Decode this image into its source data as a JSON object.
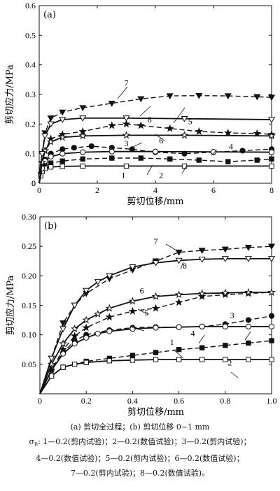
{
  "chart_data": [
    {
      "type": "line",
      "panel_label": "(a)",
      "xlabel": "剪切位移/mm",
      "ylabel": "剪切应力/MPa",
      "xlim": [
        0,
        8
      ],
      "ylim": [
        0,
        0.6
      ],
      "xticks": [
        0,
        2,
        4,
        6,
        8
      ],
      "yticks": [
        "0",
        "0.1",
        "0.2",
        "0.3",
        "0.4",
        "0.5",
        "0.6"
      ],
      "grid": false,
      "series": [
        {
          "name": "1",
          "marker": "square-filled",
          "dashed": true,
          "x": [
            0,
            0.05,
            0.1,
            0.2,
            0.4,
            0.8,
            1.5,
            2.5,
            3.5,
            4.5,
            5.5,
            6.5,
            7.5,
            8
          ],
          "y": [
            0,
            0.03,
            0.045,
            0.06,
            0.068,
            0.075,
            0.082,
            0.085,
            0.085,
            0.082,
            0.078,
            0.073,
            0.078,
            0.082
          ]
        },
        {
          "name": "2",
          "marker": "square-open",
          "dashed": false,
          "x": [
            0,
            0.05,
            0.1,
            0.2,
            0.4,
            0.8,
            1.5,
            3,
            5,
            8
          ],
          "y": [
            0,
            0.025,
            0.04,
            0.05,
            0.055,
            0.057,
            0.058,
            0.058,
            0.058,
            0.058
          ]
        },
        {
          "name": "3",
          "marker": "circle-filled",
          "dashed": true,
          "x": [
            0,
            0.1,
            0.2,
            0.4,
            0.8,
            1.2,
            1.8,
            2.5,
            3.2,
            4,
            5,
            6,
            7,
            8
          ],
          "y": [
            0,
            0.05,
            0.08,
            0.1,
            0.115,
            0.12,
            0.125,
            0.12,
            0.115,
            0.105,
            0.1,
            0.105,
            0.11,
            0.115
          ]
        },
        {
          "name": "4",
          "marker": "circle-open",
          "dashed": false,
          "x": [
            0,
            0.1,
            0.2,
            0.4,
            0.8,
            1.5,
            2.5,
            4,
            6,
            8
          ],
          "y": [
            0,
            0.05,
            0.075,
            0.09,
            0.1,
            0.105,
            0.107,
            0.107,
            0.106,
            0.105
          ]
        },
        {
          "name": "5",
          "marker": "star-filled",
          "dashed": true,
          "x": [
            0,
            0.1,
            0.2,
            0.4,
            0.8,
            1.5,
            2.5,
            3,
            3.5,
            4.5,
            5.5,
            6.5,
            7.5,
            8
          ],
          "y": [
            0,
            0.07,
            0.11,
            0.15,
            0.165,
            0.175,
            0.195,
            0.2,
            0.195,
            0.185,
            0.175,
            0.17,
            0.168,
            0.165
          ]
        },
        {
          "name": "6",
          "marker": "star-open",
          "dashed": false,
          "x": [
            0,
            0.1,
            0.2,
            0.4,
            0.8,
            1.5,
            3,
            5,
            8
          ],
          "y": [
            0,
            0.07,
            0.11,
            0.14,
            0.155,
            0.16,
            0.162,
            0.162,
            0.16
          ]
        },
        {
          "name": "7",
          "marker": "triangle-down-filled",
          "dashed": true,
          "x": [
            0,
            0.1,
            0.2,
            0.4,
            0.8,
            1.5,
            2.5,
            3.5,
            4.5,
            5.5,
            6.5,
            7.5,
            8
          ],
          "y": [
            0,
            0.1,
            0.17,
            0.22,
            0.24,
            0.255,
            0.27,
            0.285,
            0.295,
            0.296,
            0.295,
            0.292,
            0.29
          ]
        },
        {
          "name": "8",
          "marker": "triangle-down-open",
          "dashed": false,
          "x": [
            0,
            0.1,
            0.2,
            0.4,
            0.8,
            1.5,
            3,
            5,
            8
          ],
          "y": [
            0,
            0.1,
            0.16,
            0.2,
            0.215,
            0.22,
            0.22,
            0.218,
            0.215
          ]
        }
      ],
      "annotations": [
        {
          "text": "7",
          "x": 3.0,
          "y": 0.33
        },
        {
          "text": "8",
          "x": 3.8,
          "y": 0.205
        },
        {
          "text": "5",
          "x": 5.2,
          "y": 0.2
        },
        {
          "text": "6",
          "x": 4.2,
          "y": 0.135
        },
        {
          "text": "3",
          "x": 3.0,
          "y": 0.125
        },
        {
          "text": "4",
          "x": 6.6,
          "y": 0.115
        },
        {
          "text": "1",
          "x": 2.9,
          "y": 0.018
        },
        {
          "text": "2",
          "x": 4.2,
          "y": 0.018
        }
      ]
    },
    {
      "type": "line",
      "panel_label": "(b)",
      "xlabel": "剪切位移/mm",
      "ylabel": "剪切应力/MPa",
      "xlim": [
        0,
        1.0
      ],
      "ylim": [
        0,
        0.3
      ],
      "xticks": [
        "0",
        "0.2",
        "0.4",
        "0.6",
        "0.8",
        "1.0"
      ],
      "yticks": [
        "0.05",
        "0.10",
        "0.15",
        "0.20",
        "0.25",
        "0.30"
      ],
      "grid": false,
      "series": [
        {
          "name": "1",
          "marker": "square-filled",
          "dashed": true,
          "x": [
            0,
            0.05,
            0.1,
            0.2,
            0.3,
            0.4,
            0.5,
            0.6,
            0.7,
            0.8,
            0.9,
            1.0
          ],
          "y": [
            0,
            0.03,
            0.045,
            0.055,
            0.06,
            0.065,
            0.07,
            0.075,
            0.078,
            0.082,
            0.086,
            0.09
          ]
        },
        {
          "name": "2",
          "marker": "square-open",
          "dashed": false,
          "x": [
            0,
            0.05,
            0.1,
            0.15,
            0.2,
            0.3,
            0.4,
            0.5,
            0.6,
            0.7,
            0.8,
            0.9,
            1.0
          ],
          "y": [
            0,
            0.03,
            0.045,
            0.05,
            0.053,
            0.056,
            0.057,
            0.058,
            0.058,
            0.058,
            0.058,
            0.058,
            0.058
          ]
        },
        {
          "name": "3",
          "marker": "circle-filled",
          "dashed": true,
          "x": [
            0,
            0.05,
            0.1,
            0.15,
            0.2,
            0.3,
            0.4,
            0.5,
            0.6,
            0.7,
            0.8,
            0.9,
            1.0
          ],
          "y": [
            0,
            0.04,
            0.07,
            0.09,
            0.1,
            0.108,
            0.112,
            0.113,
            0.113,
            0.114,
            0.118,
            0.125,
            0.132
          ]
        },
        {
          "name": "4",
          "marker": "circle-open",
          "dashed": false,
          "x": [
            0,
            0.05,
            0.1,
            0.15,
            0.2,
            0.25,
            0.3,
            0.4,
            0.5,
            0.6,
            0.7,
            0.8,
            0.9,
            1.0
          ],
          "y": [
            0,
            0.04,
            0.068,
            0.085,
            0.095,
            0.102,
            0.106,
            0.11,
            0.112,
            0.113,
            0.114,
            0.114,
            0.114,
            0.114
          ]
        },
        {
          "name": "5",
          "marker": "star-filled",
          "dashed": true,
          "x": [
            0,
            0.05,
            0.1,
            0.15,
            0.2,
            0.3,
            0.4,
            0.5,
            0.6,
            0.7,
            0.8,
            0.9,
            1.0
          ],
          "y": [
            0,
            0.04,
            0.075,
            0.098,
            0.112,
            0.13,
            0.14,
            0.145,
            0.155,
            0.165,
            0.168,
            0.17,
            0.172
          ]
        },
        {
          "name": "6",
          "marker": "star-open",
          "dashed": false,
          "x": [
            0,
            0.05,
            0.1,
            0.15,
            0.2,
            0.25,
            0.3,
            0.4,
            0.5,
            0.6,
            0.7,
            0.8,
            0.9,
            1.0
          ],
          "y": [
            0,
            0.05,
            0.085,
            0.11,
            0.125,
            0.135,
            0.145,
            0.157,
            0.165,
            0.168,
            0.17,
            0.171,
            0.172,
            0.172
          ]
        },
        {
          "name": "7",
          "marker": "triangle-down-filled",
          "dashed": true,
          "x": [
            0,
            0.05,
            0.1,
            0.15,
            0.2,
            0.3,
            0.4,
            0.5,
            0.6,
            0.7,
            0.8,
            0.9,
            1.0
          ],
          "y": [
            0,
            0.06,
            0.12,
            0.15,
            0.17,
            0.195,
            0.21,
            0.225,
            0.24,
            0.243,
            0.245,
            0.248,
            0.25
          ]
        },
        {
          "name": "8",
          "marker": "triangle-down-open",
          "dashed": false,
          "x": [
            0,
            0.05,
            0.1,
            0.15,
            0.2,
            0.25,
            0.3,
            0.4,
            0.5,
            0.6,
            0.7,
            0.8,
            0.9,
            1.0
          ],
          "y": [
            0,
            0.06,
            0.11,
            0.15,
            0.175,
            0.19,
            0.2,
            0.215,
            0.222,
            0.226,
            0.228,
            0.229,
            0.229,
            0.229
          ]
        }
      ],
      "annotations": [
        {
          "text": "7",
          "x": 0.5,
          "y": 0.254
        },
        {
          "text": "8",
          "x": 0.625,
          "y": 0.212
        },
        {
          "text": "6",
          "x": 0.44,
          "y": 0.17
        },
        {
          "text": "5",
          "x": 0.46,
          "y": 0.133
        },
        {
          "text": "3",
          "x": 0.83,
          "y": 0.128
        },
        {
          "text": "4",
          "x": 0.66,
          "y": 0.098
        },
        {
          "text": "1",
          "x": 0.57,
          "y": 0.083
        },
        {
          "text": "2",
          "x": 0.82,
          "y": 0.048
        }
      ]
    }
  ],
  "caption": {
    "line1": "(a)  剪切全过程；(b)  剪切位移 0~1 mm",
    "sigma_symbol": "σ",
    "sigma_sub": "n",
    "line2_rest": ": 1—0.2(剪内试验)；2—0.2(数值试验)；3—0.2(剪内试验)；",
    "line3": "4—0.2(数值试验)；5—0.2(剪内试验)；6—0.2(数值试验)；",
    "line4": "7—0.2(剪内试验)；8—0.2(数值试验)。"
  }
}
